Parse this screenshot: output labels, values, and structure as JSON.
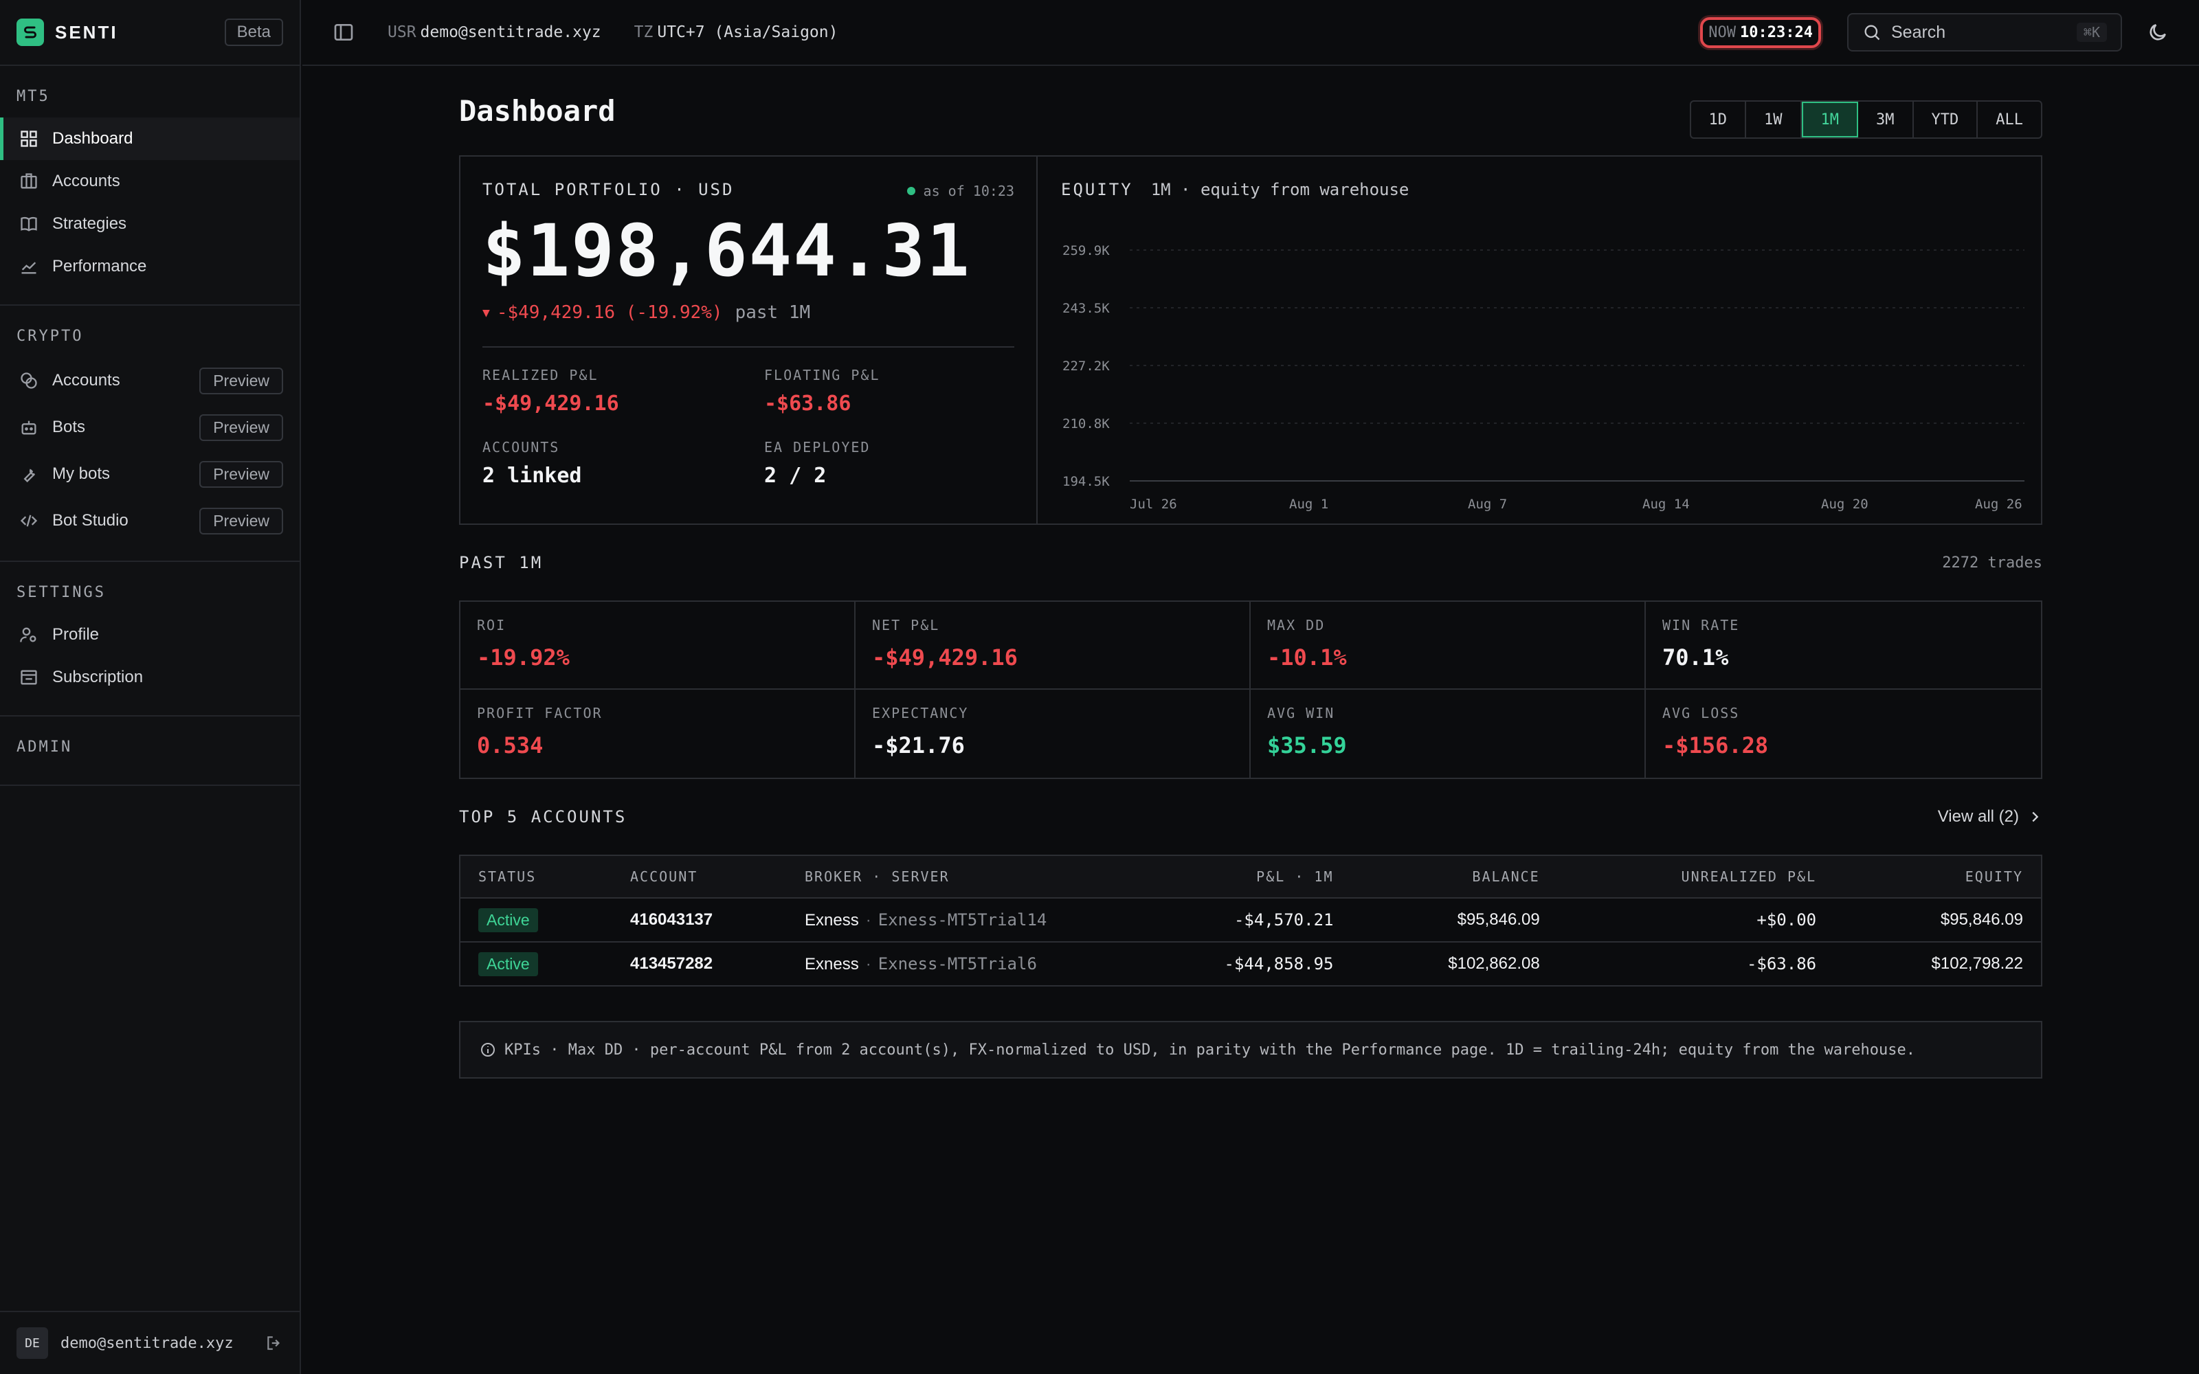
{
  "app": {
    "name": "SENTI",
    "badge": "Beta"
  },
  "sidebar": {
    "sections": [
      {
        "title": "MT5",
        "items": [
          {
            "label": "Dashboard"
          },
          {
            "label": "Accounts"
          },
          {
            "label": "Strategies"
          },
          {
            "label": "Performance"
          }
        ]
      },
      {
        "title": "CRYPTO",
        "items": [
          {
            "label": "Accounts",
            "badge": "Preview"
          },
          {
            "label": "Bots",
            "badge": "Preview"
          },
          {
            "label": "My bots",
            "badge": "Preview"
          },
          {
            "label": "Bot Studio",
            "badge": "Preview"
          }
        ]
      },
      {
        "title": "SETTINGS",
        "items": [
          {
            "label": "Profile"
          },
          {
            "label": "Subscription"
          }
        ]
      },
      {
        "title": "ADMIN",
        "items": []
      }
    ],
    "footer": {
      "avatar": "DE",
      "email": "demo@sentitrade.xyz"
    }
  },
  "topbar": {
    "user_key": "USR",
    "user": "demo@sentitrade.xyz",
    "tz_key": "TZ",
    "tz": "UTC+7 (Asia/Saigon)",
    "now_key": "NOW",
    "now": "10:23:24",
    "search": "Search",
    "search_kbd": "⌘K"
  },
  "dashboard": {
    "title": "Dashboard",
    "ranges": [
      "1D",
      "1W",
      "1M",
      "3M",
      "YTD",
      "ALL"
    ],
    "active_range": "1M",
    "portfolio": {
      "label": "TOTAL PORTFOLIO · USD",
      "asof": "as of 10:23",
      "value": "$198,644.31",
      "change_arrow": "▼",
      "change": "-$49,429.16 (-19.92%)",
      "change_period": "past 1M",
      "stats": [
        {
          "label": "REALIZED P&L",
          "value": "-$49,429.16",
          "tone": "neg"
        },
        {
          "label": "FLOATING P&L",
          "value": "-$63.86",
          "tone": "neg"
        },
        {
          "label": "ACCOUNTS",
          "value": "2 linked",
          "tone": "white"
        },
        {
          "label": "EA DEPLOYED",
          "value": "2 / 2",
          "tone": "white"
        }
      ]
    },
    "equity": {
      "label": "EQUITY",
      "subtitle": "1M · equity from warehouse"
    },
    "kpi_section": {
      "title": "PAST 1M",
      "trades": "2272 trades"
    },
    "kpis": [
      {
        "label": "ROI",
        "value": "-19.92%",
        "tone": "neg"
      },
      {
        "label": "NET P&L",
        "value": "-$49,429.16",
        "tone": "neg"
      },
      {
        "label": "MAX DD",
        "value": "-10.1%",
        "tone": "neg"
      },
      {
        "label": "WIN RATE",
        "value": "70.1%",
        "tone": "white"
      },
      {
        "label": "PROFIT FACTOR",
        "value": "0.534",
        "tone": "neg"
      },
      {
        "label": "EXPECTANCY",
        "value": "-$21.76",
        "tone": "white"
      },
      {
        "label": "AVG WIN",
        "value": "$35.59",
        "tone": "pos"
      },
      {
        "label": "AVG LOSS",
        "value": "-$156.28",
        "tone": "neg"
      }
    ],
    "accounts_section": {
      "title": "TOP 5 ACCOUNTS",
      "view_all": "View all (2)"
    },
    "accounts_table": {
      "headers": [
        "STATUS",
        "ACCOUNT",
        "BROKER · SERVER",
        "P&L · 1M",
        "BALANCE",
        "UNREALIZED P&L",
        "EQUITY"
      ],
      "rows": [
        {
          "status": "Active",
          "account": "416043137",
          "broker": "Exness",
          "server": "Exness-MT5Trial14",
          "pnl": "-$4,570.21",
          "pnl_tone": "neg",
          "balance": "$95,846.09",
          "unrealized": "+$0.00",
          "unrealized_tone": "pos",
          "equity": "$95,846.09"
        },
        {
          "status": "Active",
          "account": "413457282",
          "broker": "Exness",
          "server": "Exness-MT5Trial6",
          "pnl": "-$44,858.95",
          "pnl_tone": "neg",
          "balance": "$102,862.08",
          "unrealized": "-$63.86",
          "unrealized_tone": "neg",
          "equity": "$102,798.22"
        }
      ]
    },
    "note": "KPIs · Max DD · per-account P&L from 2 account(s), FX-normalized to USD, in parity with the Performance page. 1D = trailing-24h; equity from the warehouse."
  },
  "chart_data": {
    "type": "line",
    "yticks": [
      "259.9K",
      "243.5K",
      "227.2K",
      "210.8K",
      "194.5K"
    ],
    "xticks": [
      "Jul 26",
      "Aug 1",
      "Aug 7",
      "Aug 14",
      "Aug 20",
      "Aug 26"
    ],
    "series": [],
    "grid": true
  },
  "colors": {
    "accent": "#2fbf83",
    "negative": "#ef4a4f",
    "positive": "#34d399",
    "alert": "#e0474c"
  }
}
